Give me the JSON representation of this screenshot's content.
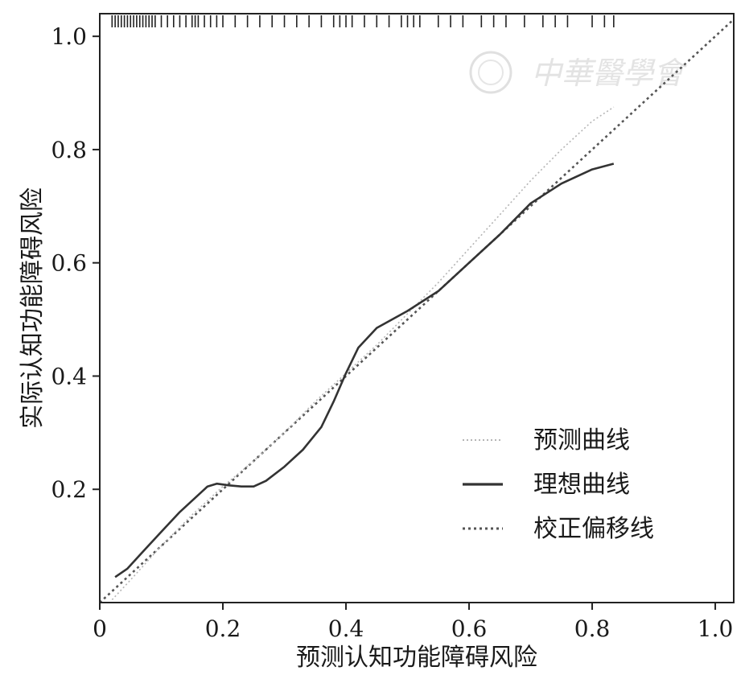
{
  "chart_data": {
    "type": "line",
    "xlabel": "预测认知功能障碍风险",
    "ylabel": "实际认知功能障碍风险",
    "xlim": [
      0,
      1.03
    ],
    "ylim": [
      0,
      1.04
    ],
    "x_ticks": [
      "0",
      "0.2",
      "0.4",
      "0.6",
      "0.8",
      "1.0"
    ],
    "x_tick_values": [
      0,
      0.2,
      0.4,
      0.6,
      0.8,
      1.0
    ],
    "y_ticks": [
      "0.2",
      "0.4",
      "0.6",
      "0.8",
      "1.0"
    ],
    "y_tick_values": [
      0.2,
      0.4,
      0.6,
      0.8,
      1.0
    ],
    "series": [
      {
        "name": "预测曲线",
        "style": "dotted-light",
        "color": "#b5b5b5",
        "x": [
          0.02,
          0.05,
          0.1,
          0.15,
          0.2,
          0.25,
          0.3,
          0.35,
          0.4,
          0.45,
          0.5,
          0.55,
          0.6,
          0.65,
          0.7,
          0.75,
          0.8,
          0.835
        ],
        "y": [
          0.005,
          0.04,
          0.1,
          0.155,
          0.205,
          0.25,
          0.3,
          0.355,
          0.405,
          0.455,
          0.51,
          0.565,
          0.625,
          0.685,
          0.745,
          0.8,
          0.85,
          0.875
        ]
      },
      {
        "name": "理想曲线",
        "style": "solid",
        "color": "#333333",
        "x": [
          0.025,
          0.045,
          0.07,
          0.1,
          0.13,
          0.16,
          0.175,
          0.19,
          0.21,
          0.23,
          0.25,
          0.27,
          0.3,
          0.33,
          0.36,
          0.38,
          0.4,
          0.42,
          0.45,
          0.5,
          0.55,
          0.6,
          0.65,
          0.7,
          0.75,
          0.8,
          0.835
        ],
        "y": [
          0.045,
          0.06,
          0.09,
          0.125,
          0.16,
          0.19,
          0.205,
          0.21,
          0.207,
          0.205,
          0.205,
          0.215,
          0.24,
          0.27,
          0.31,
          0.355,
          0.405,
          0.45,
          0.485,
          0.515,
          0.55,
          0.6,
          0.65,
          0.705,
          0.74,
          0.765,
          0.775
        ]
      },
      {
        "name": "校正偏移线",
        "style": "dotted-dark",
        "color": "#555555",
        "x": [
          0,
          1.03
        ],
        "y": [
          0,
          1.03
        ]
      }
    ],
    "rug_x": [
      0.02,
      0.025,
      0.03,
      0.035,
      0.04,
      0.045,
      0.05,
      0.055,
      0.06,
      0.065,
      0.07,
      0.075,
      0.08,
      0.085,
      0.09,
      0.1,
      0.11,
      0.12,
      0.13,
      0.14,
      0.15,
      0.155,
      0.16,
      0.17,
      0.18,
      0.19,
      0.2,
      0.22,
      0.24,
      0.26,
      0.28,
      0.3,
      0.32,
      0.34,
      0.36,
      0.38,
      0.39,
      0.4,
      0.41,
      0.43,
      0.45,
      0.47,
      0.49,
      0.5,
      0.51,
      0.52,
      0.55,
      0.57,
      0.59,
      0.62,
      0.64,
      0.66,
      0.69,
      0.72,
      0.74,
      0.76,
      0.8,
      0.82,
      0.835
    ],
    "grid": false,
    "legend_position": "bottom-right",
    "watermark": "中華醫學會"
  }
}
